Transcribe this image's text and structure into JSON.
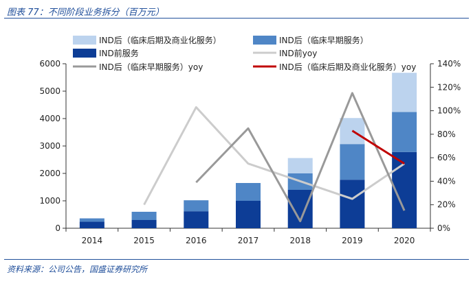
{
  "figure": {
    "title": "图表 77：不同阶段业务拆分（百万元）",
    "source": "资料来源：公司公告，国盛证券研究所"
  },
  "chart_data": {
    "type": "bar",
    "title": "不同阶段业务拆分（百万元）",
    "categories": [
      "2014",
      "2015",
      "2016",
      "2017",
      "2018",
      "2019",
      "2020"
    ],
    "stacked": true,
    "ylim": [
      0,
      6000
    ],
    "yticks": [
      "0",
      "1000",
      "2000",
      "3000",
      "4000",
      "5000",
      "6000"
    ],
    "y2lim": [
      0,
      140
    ],
    "y2ticks": [
      "0%",
      "20%",
      "40%",
      "60%",
      "80%",
      "100%",
      "120%",
      "140%"
    ],
    "series": [
      {
        "name": "IND前服务",
        "kind": "bar",
        "axis": "left",
        "color": "#0d3d96",
        "values": [
          240,
          300,
          620,
          1000,
          1400,
          1770,
          2780
        ]
      },
      {
        "name": "IND后（临床早期服务）",
        "kind": "bar",
        "axis": "left",
        "color": "#4f86c6",
        "values": [
          120,
          300,
          400,
          650,
          600,
          1300,
          1460
        ]
      },
      {
        "name": "IND后（临床后期及商业化服务）",
        "kind": "bar",
        "axis": "left",
        "color": "#bcd3ee",
        "values": [
          0,
          0,
          0,
          0,
          560,
          950,
          1430
        ]
      },
      {
        "name": "IND前yoy",
        "kind": "line",
        "axis": "right",
        "color": "#cccccc",
        "values": [
          null,
          20,
          103,
          55,
          40,
          25,
          55
        ]
      },
      {
        "name": "IND后（临床早期服务）yoy",
        "kind": "line",
        "axis": "right",
        "color": "#999999",
        "values": [
          null,
          null,
          39,
          85,
          6,
          115,
          15
        ]
      },
      {
        "name": "IND后（临床后期及商业化服务）yoy",
        "kind": "line",
        "axis": "right",
        "color": "#c00000",
        "values": [
          null,
          null,
          null,
          null,
          null,
          83,
          55
        ]
      }
    ],
    "legend": {
      "placement": "top",
      "order": [
        2,
        1,
        0,
        3,
        4,
        5
      ]
    }
  }
}
